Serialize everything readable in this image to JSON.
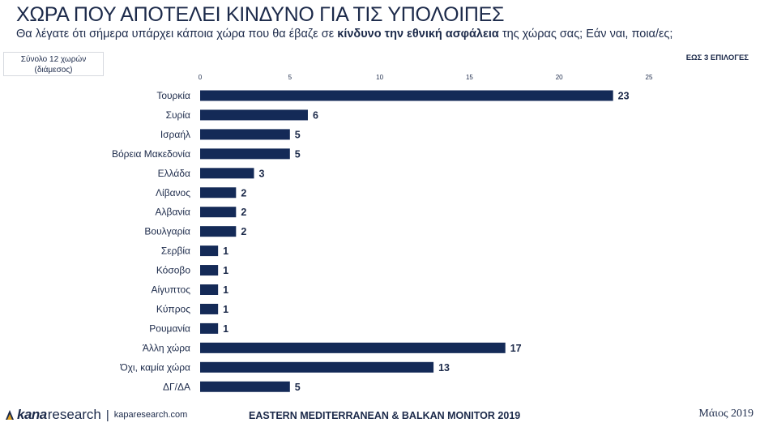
{
  "header": {
    "title": "ΧΩΡΑ ΠΟΥ ΑΠΟΤΕΛΕΙ ΚΙΝΔΥΝΟ ΓΙΑ ΤΙΣ ΥΠΟΛΟΙΠΕΣ",
    "subtitle_pre": "Θα λέγατε ότι σήμερα υπάρχει κάποια χώρα που θα έβαζε σε ",
    "subtitle_bold": "κίνδυνο την εθνική ασφάλεια",
    "subtitle_post": " της χώρας σας; Εάν ναι, ποια/ες;"
  },
  "sample_box": {
    "line1": "Σύνολο 12 χωρών",
    "line2": "(διάμεσος)"
  },
  "choices_note": "ΕΩΣ 3 ΕΠΙΛΟΓΕΣ",
  "chart_data": {
    "type": "bar",
    "orientation": "horizontal",
    "categories": [
      "Τουρκία",
      "Συρία",
      "Ισραήλ",
      "Βόρεια Μακεδονία",
      "Ελλάδα",
      "Λίβανος",
      "Αλβανία",
      "Βουλγαρία",
      "Σερβία",
      "Κόσοβο",
      "Αίγυπτος",
      "Κύπρος",
      "Ρουμανία",
      "Άλλη χώρα",
      "Όχι, καμία χώρα",
      "ΔΓ/ΔΑ"
    ],
    "values": [
      23,
      6,
      5,
      5,
      3,
      2,
      2,
      2,
      1,
      1,
      1,
      1,
      1,
      17,
      13,
      5
    ],
    "xlim": [
      0,
      25
    ],
    "xticks": [
      0,
      5,
      10,
      15,
      20,
      25
    ],
    "grid": false,
    "bar_color": "#142a57"
  },
  "footer": {
    "brand_kana": "kana",
    "brand_research": "research",
    "separator": "|",
    "url": "kaparesearch.com",
    "monitor": "EASTERN MEDITERRANEAN & BALKAN MONITOR 2019",
    "date": "Μάιος 2019"
  }
}
